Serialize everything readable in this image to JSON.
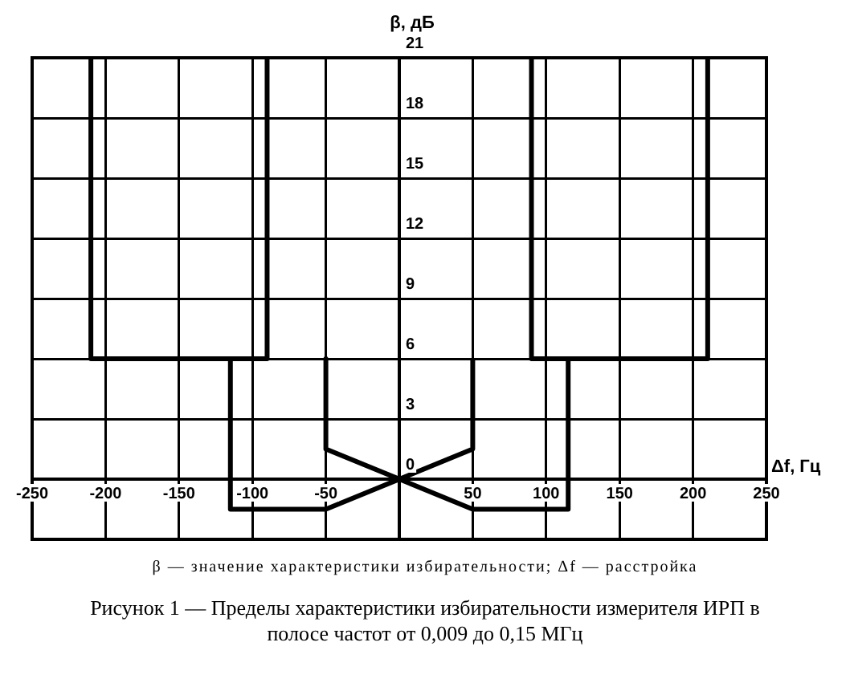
{
  "chart_data": {
    "type": "line",
    "xlabel": "Δf, Гц",
    "ylabel": "β, дБ",
    "annotations": [
      "β — значение характеристики избирательности; Δf — расстройка",
      "Рисунок 1 — Пределы характеристики избирательности измерителя ИРП в полосе частот от 0,009 до 0,15 МГц"
    ],
    "xlim": [
      -250,
      250
    ],
    "ylim": [
      -3,
      21
    ],
    "xticks": [
      -250,
      -200,
      -150,
      -100,
      -50,
      {
        "value": 0,
        "label": null
      },
      50,
      100,
      150,
      200,
      250
    ],
    "yticks": [
      0,
      3,
      6,
      9,
      12,
      15,
      18,
      21
    ],
    "grid": true,
    "marker": "none",
    "line_style": "solid",
    "legend": false,
    "series": [
      {
        "color": "#000000",
        "x": [
          -210,
          -210,
          -90,
          -90
        ],
        "values": [
          21,
          6,
          6,
          21
        ]
      },
      {
        "color": "#000000",
        "x": [
          90,
          90,
          210,
          210
        ],
        "values": [
          21,
          6,
          6,
          21
        ]
      },
      {
        "color": "#000000",
        "x": [
          -115,
          -115,
          -50,
          50,
          50
        ],
        "values": [
          6,
          -1.5,
          -1.5,
          1.5,
          6
        ]
      },
      {
        "color": "#000000",
        "x": [
          -50,
          -50,
          50,
          115,
          115
        ],
        "values": [
          6,
          1.5,
          -1.5,
          -1.5,
          6
        ]
      }
    ]
  }
}
